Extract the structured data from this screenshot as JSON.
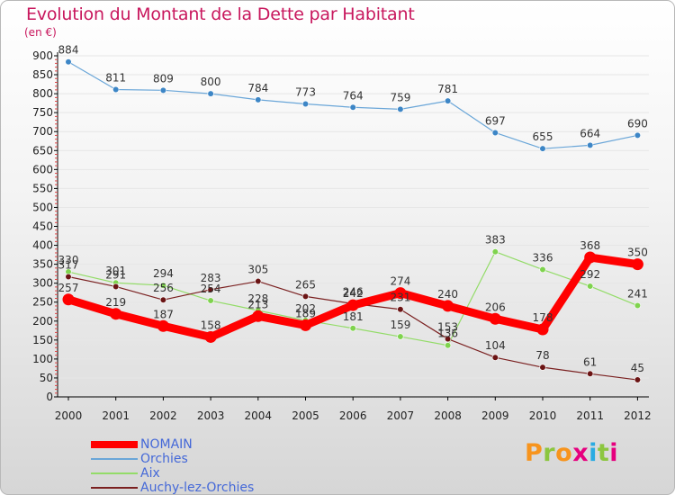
{
  "header": {
    "title": "Evolution du Montant de la Dette par Habitant",
    "unit": "(en €)"
  },
  "colors": {
    "title": "#c8175d",
    "legend_text": "#4468d8",
    "grid": "#e6e6e6",
    "axis": "#000000"
  },
  "brand": {
    "logo_text": "Proxiti",
    "logo_colors": [
      "#f7941d",
      "#8cc63f",
      "#f7941d",
      "#e6007e",
      "#29abe2",
      "#8cc63f",
      "#e6007e"
    ]
  },
  "chart_data": {
    "type": "line",
    "title": "Evolution du Montant de la Dette par Habitant",
    "ylabel": "(en €)",
    "xlabel": "",
    "ylim": [
      0,
      900
    ],
    "yticks": [
      0,
      50,
      100,
      150,
      200,
      250,
      300,
      350,
      400,
      450,
      500,
      550,
      600,
      650,
      700,
      750,
      800,
      850,
      900
    ],
    "grid": true,
    "legend_position": "bottom-left",
    "categories": [
      "2000",
      "2001",
      "2002",
      "2003",
      "2004",
      "2005",
      "2006",
      "2007",
      "2008",
      "2009",
      "2010",
      "2011",
      "2012"
    ],
    "series": [
      {
        "name": "NOMAIN",
        "color": "#ff0000",
        "marker_color": "#ff0000",
        "values": [
          257,
          219,
          187,
          158,
          213,
          189,
          242,
          274,
          240,
          206,
          178,
          368,
          350
        ]
      },
      {
        "name": "Orchies",
        "color": "#6aa6d8",
        "marker_color": "#3d86c6",
        "values": [
          884,
          811,
          809,
          800,
          784,
          773,
          764,
          759,
          781,
          697,
          655,
          664,
          690
        ]
      },
      {
        "name": "Aix",
        "color": "#93dc68",
        "marker_color": "#7fd34e",
        "values": [
          330,
          301,
          294,
          254,
          228,
          202,
          181,
          159,
          136,
          383,
          336,
          292,
          241
        ]
      },
      {
        "name": "Auchy-lez-Orchies",
        "color": "#7a2020",
        "marker_color": "#6b1414",
        "values": [
          317,
          291,
          256,
          283,
          305,
          265,
          246,
          231,
          153,
          104,
          78,
          61,
          45
        ]
      }
    ]
  }
}
